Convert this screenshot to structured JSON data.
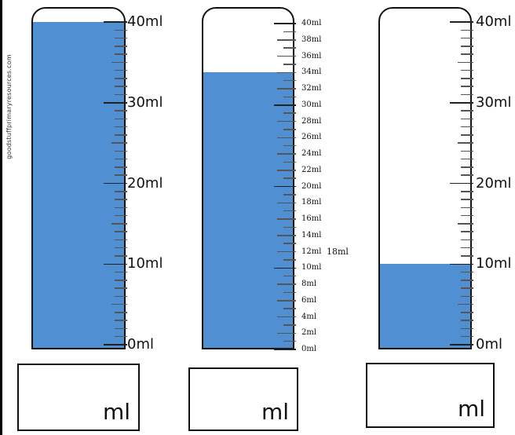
{
  "watermark": "goodstuffprimaryresources.com",
  "cylinders": [
    {
      "id": "a",
      "fill_ml": 40,
      "labels": [
        "40ml",
        "30ml",
        "20ml",
        "10ml",
        "0ml"
      ],
      "answer_unit": "ml",
      "liquid_color": "#4f8fd2"
    },
    {
      "id": "b",
      "fill_ml": 34,
      "labels": [
        "40ml",
        "38ml",
        "36ml",
        "34ml",
        "32ml",
        "30ml",
        "28ml",
        "26ml",
        "24ml",
        "22ml",
        "20ml",
        "18ml",
        "16ml",
        "14ml",
        "12ml",
        "10ml",
        "8ml",
        "6ml",
        "4ml",
        "2ml",
        "0ml"
      ],
      "extra_label": "18ml",
      "answer_unit": "ml",
      "liquid_color": "#4f8fd2"
    },
    {
      "id": "c",
      "fill_ml": 10,
      "labels": [
        "40ml",
        "30ml",
        "20ml",
        "10ml",
        "0ml"
      ],
      "answer_unit": "ml",
      "liquid_color": "#4f8fd2"
    }
  ]
}
